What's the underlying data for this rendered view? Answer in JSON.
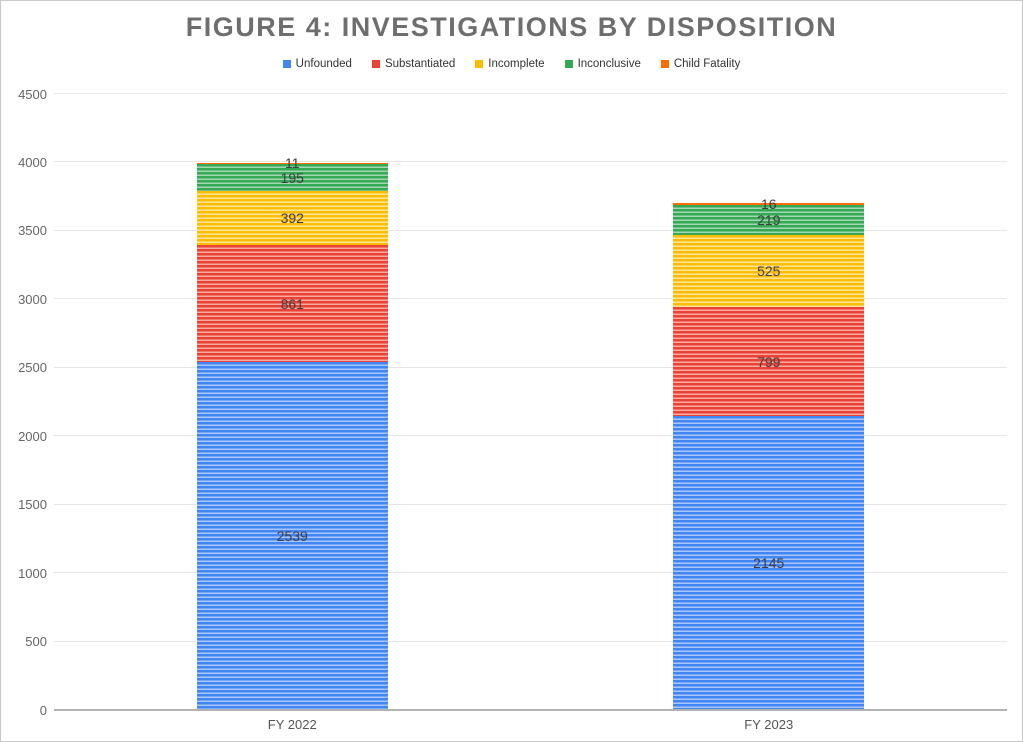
{
  "chart_data": {
    "type": "bar",
    "stacked": true,
    "title": "FIGURE 4: INVESTIGATIONS BY DISPOSITION",
    "categories": [
      "FY 2022",
      "FY 2023"
    ],
    "series": [
      {
        "name": "Unfounded",
        "color": "#4285F4",
        "stripe": "#aac6f9",
        "values": [
          2539,
          2145
        ]
      },
      {
        "name": "Substantiated",
        "color": "#EA4335",
        "stripe": "#f6aaa3",
        "values": [
          861,
          799
        ]
      },
      {
        "name": "Incomplete",
        "color": "#FBBC04",
        "stripe": "#fde49b",
        "values": [
          392,
          525
        ]
      },
      {
        "name": "Inconclusive",
        "color": "#34A853",
        "stripe": "#a5d6b4",
        "values": [
          195,
          219
        ]
      },
      {
        "name": "Child Fatality",
        "color": "#FF6D01",
        "stripe": "#ffb27a",
        "values": [
          11,
          16
        ]
      }
    ],
    "xlabel": "",
    "ylabel": "",
    "ylim": [
      0,
      4500
    ],
    "yticks": [
      0,
      500,
      1000,
      1500,
      2000,
      2500,
      3000,
      3500,
      4000,
      4500
    ],
    "grid": true,
    "legend_position": "top",
    "title_color": "#6e6e6e",
    "gridline_color": "#e6e6e6",
    "axis_line_color": "#b3b3b3",
    "label_color": "#3d3d3d"
  }
}
